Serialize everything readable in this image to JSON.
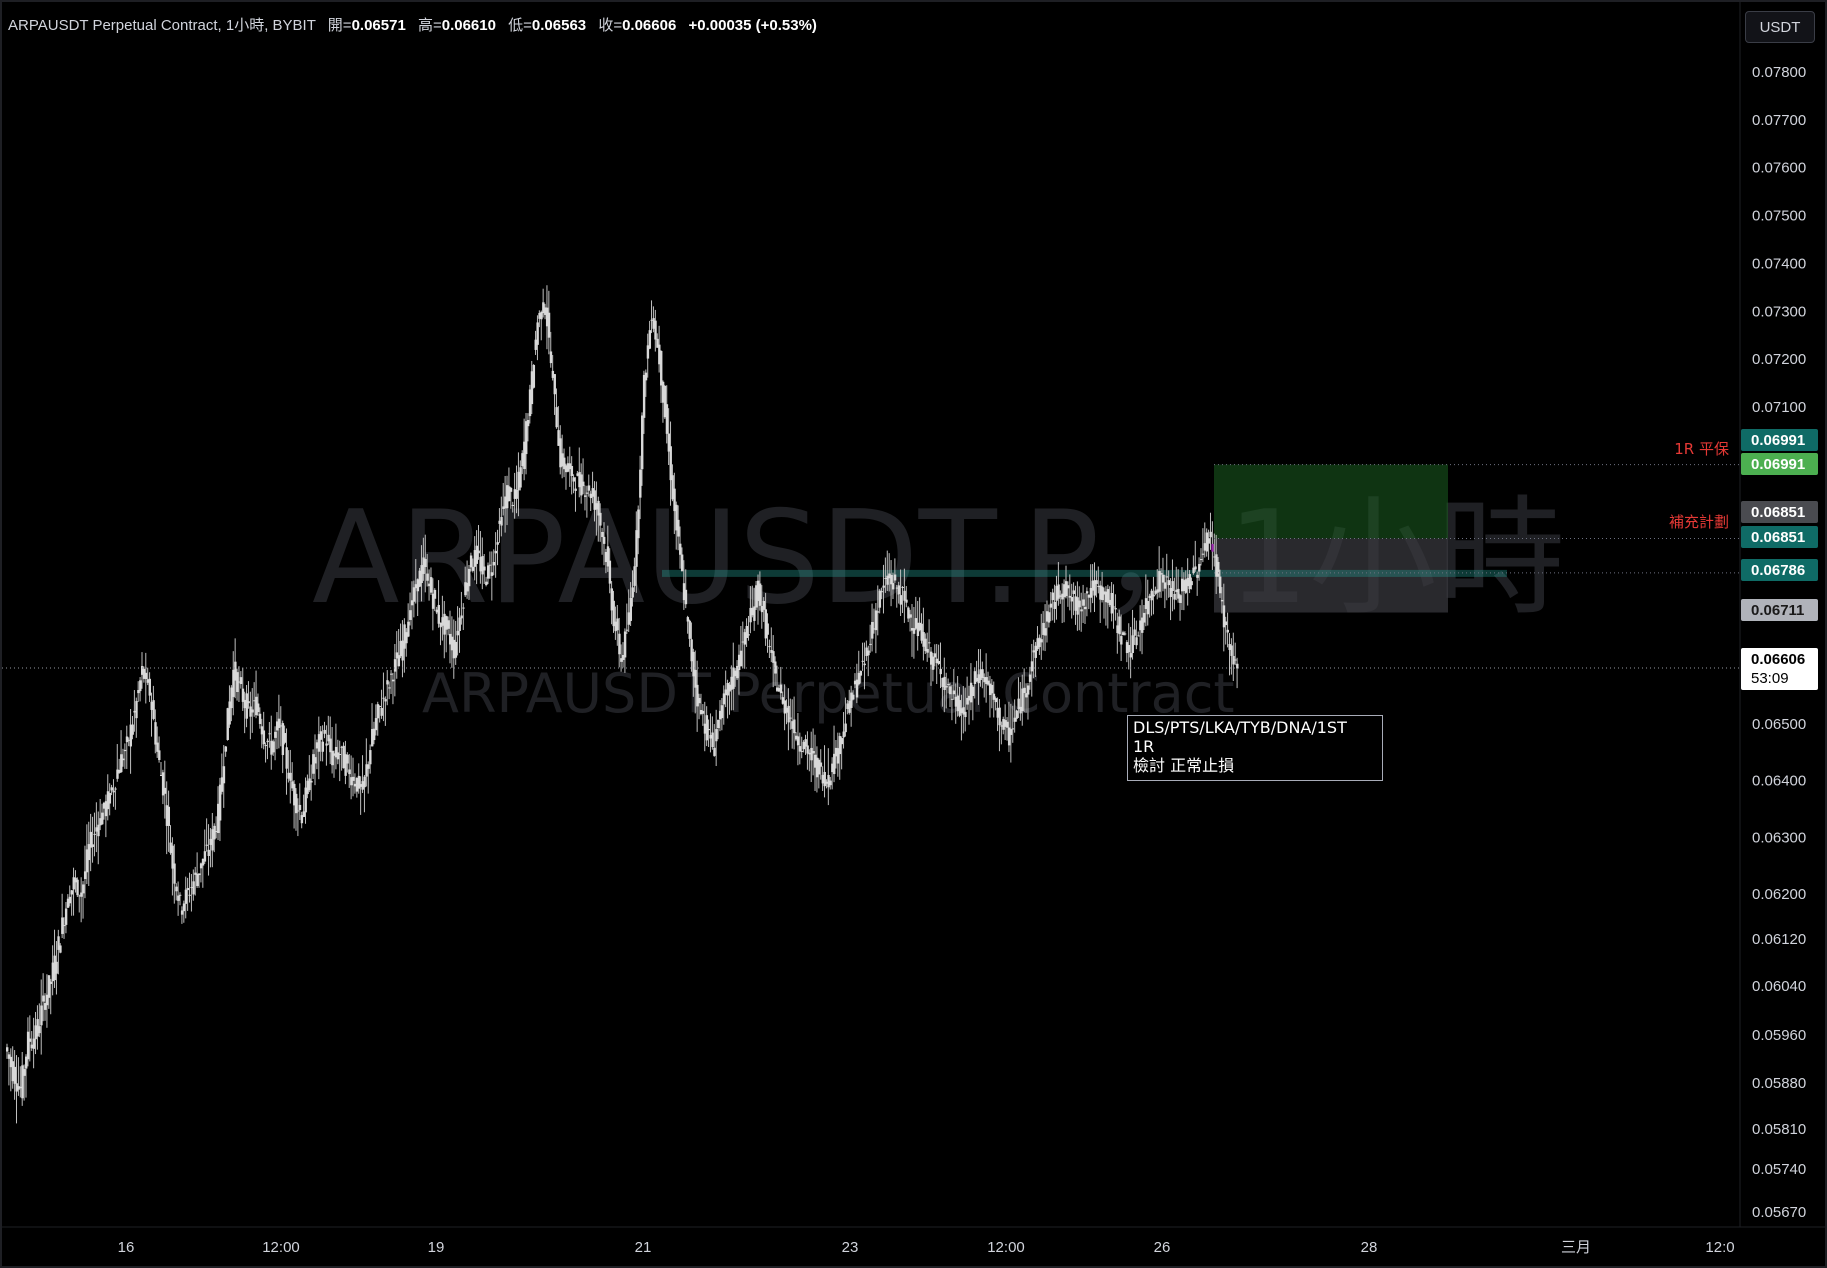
{
  "header": {
    "title": "ARPAUSDT Perpetual Contract, 1小時, BYBIT",
    "open_label": "開=",
    "open": "0.06571",
    "high_label": "高=",
    "high": "0.06610",
    "low_label": "低=",
    "low": "0.06563",
    "close_label": "收=",
    "close": "0.06606",
    "change": "+0.00035 (+0.53%)"
  },
  "currency_button": "USDT",
  "watermark": {
    "symbol": "ARPAUSDT.P，1小時",
    "name": "ARPAUSDT Perpetual Contract"
  },
  "note": {
    "lines": [
      "DLS/PTS/LKA/TYB/DNA/1ST",
      "1R",
      "檢討 正常止損"
    ]
  },
  "drawing_labels": {
    "breakeven": "1R 平保",
    "plan": "補充計劃"
  },
  "price_tags": [
    {
      "value": "0.06991",
      "bg": "#0f6b66",
      "fg": "#ffffff"
    },
    {
      "value": "0.06991",
      "bg": "#4caf50",
      "fg": "#ffffff"
    },
    {
      "value": "0.06851",
      "bg": "#4a4b50",
      "fg": "#ffffff"
    },
    {
      "value": "0.06851",
      "bg": "#0f6b66",
      "fg": "#ffffff"
    },
    {
      "value": "0.06786",
      "bg": "#0f6b66",
      "fg": "#ffffff"
    },
    {
      "value": "0.06711",
      "bg": "#b0b3ba",
      "fg": "#1a1a1a"
    },
    {
      "value": "0.06606",
      "bg": "#ffffff",
      "fg": "#000000"
    }
  ],
  "countdown": "53:09",
  "colors": {
    "candle": "#d9d9d9",
    "candle_wick": "#bfbfbf",
    "highlight_candle": "#9c27b0",
    "target_zone": "#1b5e20",
    "stop_zone": "#3a3b40",
    "entry_line": "#26a69a"
  },
  "chart_data": {
    "type": "candlestick",
    "title": "ARPAUSDT Perpetual Contract, 1小時, BYBIT",
    "interval": "1小時",
    "exchange": "BYBIT",
    "y_axis": {
      "ticks": [
        "0.07800",
        "0.07700",
        "0.07600",
        "0.07500",
        "0.07400",
        "0.07300",
        "0.07200",
        "0.07100",
        "0.06500",
        "0.06400",
        "0.06300",
        "0.06200",
        "0.06120",
        "0.06040",
        "0.05960",
        "0.05880",
        "0.05810",
        "0.05740",
        "0.05670"
      ],
      "range": [
        0.0565,
        0.0785
      ]
    },
    "x_axis": {
      "ticks": [
        "16",
        "12:00",
        "19",
        "21",
        "23",
        "12:00",
        "26",
        "28",
        "三月",
        "12:0"
      ]
    },
    "last_price": 0.06606,
    "levels": [
      {
        "price": 0.06991,
        "label": "1R 平保"
      },
      {
        "price": 0.06851,
        "label": "補充計劃"
      },
      {
        "price": 0.06786,
        "label": "entry"
      },
      {
        "price": 0.06711,
        "label": "stop"
      }
    ],
    "price_path": [
      [
        0.0594,
        0.059,
        0.0587,
        0.0595,
        0.0596,
        0.0601,
        0.0605,
        0.0611,
        0.0618,
        0.0622,
        0.062,
        0.0628,
        0.0632,
        0.0635,
        0.0638,
        0.0643,
        0.0646,
        0.0652,
        0.066,
        0.0656,
        0.0645,
        0.0637,
        0.0625,
        0.0618,
        0.062,
        0.0623,
        0.0626,
        0.0629,
        0.0634,
        0.0648,
        0.066,
        0.0656,
        0.0652,
        0.0654,
        0.0648,
        0.0646,
        0.065,
        0.0643,
        0.0637,
        0.0634,
        0.064,
        0.0646,
        0.0648,
        0.0644,
        0.0645,
        0.0642,
        0.064,
        0.0638,
        0.0646,
        0.0652,
        0.0656,
        0.066,
        0.0664,
        0.067,
        0.0676,
        0.068,
        0.0675,
        0.067,
        0.0668,
        0.0664,
        0.0672,
        0.068,
        0.0682,
        0.0678,
        0.068,
        0.0688,
        0.0694,
        0.0692,
        0.07,
        0.0712,
        0.0728,
        0.0732,
        0.0715,
        0.07,
        0.0698,
        0.0696,
        0.0695,
        0.0694,
        0.069,
        0.0682,
        0.067,
        0.0662,
        0.067,
        0.0685,
        0.0715,
        0.073,
        0.072,
        0.0705,
        0.069,
        0.0678,
        0.0665,
        0.0655,
        0.065,
        0.0646,
        0.0652,
        0.0656,
        0.066,
        0.0665,
        0.067,
        0.0676,
        0.0668,
        0.066,
        0.0655,
        0.0652,
        0.0648,
        0.0646,
        0.0644,
        0.0642,
        0.064,
        0.0644,
        0.0648,
        0.0654,
        0.0658,
        0.0662,
        0.0668,
        0.0674,
        0.0678,
        0.0676,
        0.0674,
        0.067,
        0.0668,
        0.0665,
        0.0662,
        0.066,
        0.0656,
        0.0654,
        0.0652,
        0.0656,
        0.066,
        0.0658,
        0.0654,
        0.065,
        0.0648,
        0.0652,
        0.0656,
        0.0662,
        0.0666,
        0.067,
        0.0674,
        0.0676,
        0.0674,
        0.0672,
        0.0674,
        0.0676,
        0.0675,
        0.0674,
        0.067,
        0.0666,
        0.0664,
        0.0668,
        0.0672,
        0.0676,
        0.0678,
        0.0676,
        0.0674,
        0.0676,
        0.0678,
        0.068,
        0.0686,
        0.0682,
        0.0672,
        0.0664,
        0.06606
      ]
    ]
  }
}
